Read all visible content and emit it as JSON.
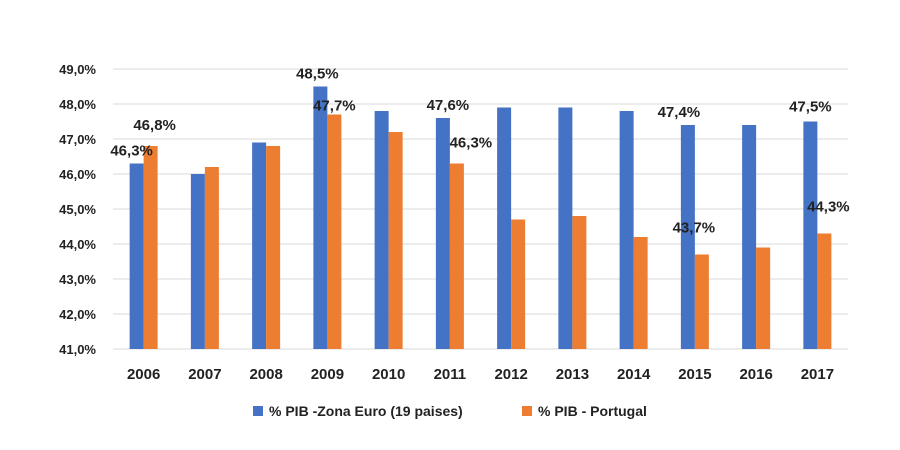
{
  "chart_data": {
    "type": "bar",
    "categories": [
      "2006",
      "2007",
      "2008",
      "2009",
      "2010",
      "2011",
      "2012",
      "2013",
      "2014",
      "2015",
      "2016",
      "2017"
    ],
    "series": [
      {
        "name": "% PIB -Zona Euro (19 paises)",
        "color": "#4472C4",
        "values": [
          46.3,
          46.0,
          46.9,
          48.5,
          47.8,
          47.6,
          47.9,
          47.9,
          47.8,
          47.4,
          47.4,
          47.5
        ]
      },
      {
        "name": "% PIB - Portugal",
        "color": "#ED7D31",
        "values": [
          46.8,
          46.2,
          46.8,
          47.7,
          47.2,
          46.3,
          44.7,
          44.8,
          44.2,
          43.7,
          43.9,
          44.3
        ]
      }
    ],
    "ylim": [
      41.0,
      49.0
    ],
    "yticks": [
      "41,0%",
      "42,0%",
      "43,0%",
      "44,0%",
      "45,0%",
      "46,0%",
      "47,0%",
      "48,0%",
      "49,0%"
    ],
    "data_labels": [
      {
        "series": 0,
        "index": 0,
        "text": "46,3%"
      },
      {
        "series": 1,
        "index": 0,
        "text": "46,8%"
      },
      {
        "series": 0,
        "index": 3,
        "text": "48,5%"
      },
      {
        "series": 1,
        "index": 3,
        "text": "47,7%"
      },
      {
        "series": 0,
        "index": 5,
        "text": "47,6%"
      },
      {
        "series": 1,
        "index": 5,
        "text": "46,3%"
      },
      {
        "series": 0,
        "index": 9,
        "text": "47,4%"
      },
      {
        "series": 1,
        "index": 9,
        "text": "43,7%"
      },
      {
        "series": 0,
        "index": 11,
        "text": "47,5%"
      },
      {
        "series": 1,
        "index": 11,
        "text": "44,3%"
      }
    ],
    "grid": true,
    "legend_position": "bottom"
  }
}
